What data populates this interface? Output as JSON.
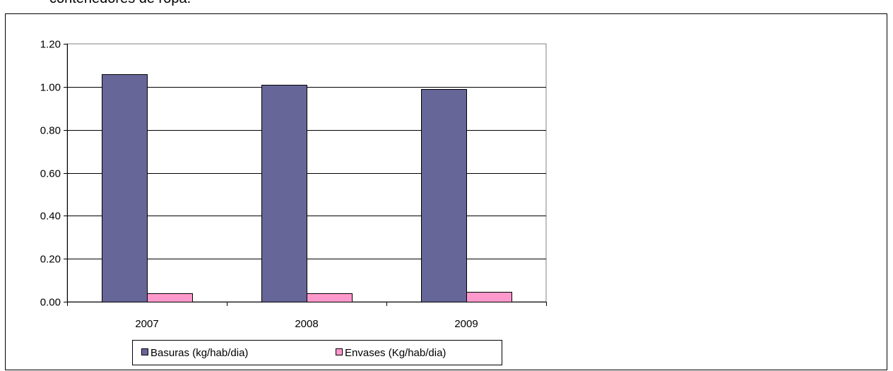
{
  "header": {
    "caption": "contenedores de ropa."
  },
  "chart_data": {
    "type": "bar",
    "categories": [
      "2007",
      "2008",
      "2009"
    ],
    "series": [
      {
        "name": "Basuras (kg/hab/dia)",
        "values": [
          1.06,
          1.01,
          0.99
        ],
        "color": "#666699"
      },
      {
        "name": "Envases (Kg/hab/dia)",
        "values": [
          0.04,
          0.04,
          0.045
        ],
        "color": "#ff99cc"
      }
    ],
    "ylim": [
      0,
      1.2
    ],
    "yticks": [
      "0.00",
      "0.20",
      "0.40",
      "0.60",
      "0.80",
      "1.00",
      "1.20"
    ],
    "grid": true,
    "legend_position": "bottom"
  }
}
